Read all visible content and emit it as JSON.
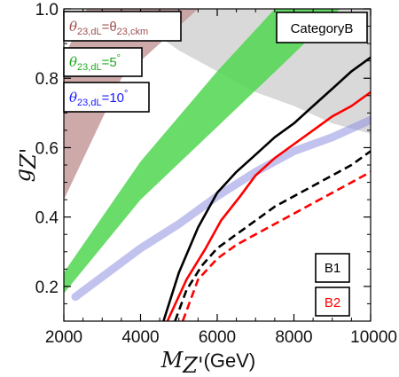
{
  "chart_data": {
    "type": "area",
    "title": "",
    "category_label": "CategoryB",
    "xlabel": {
      "symbol": "M",
      "sub": "Z'",
      "unit": "(GeV)"
    },
    "ylabel": {
      "symbol": "g",
      "sub": "Z'"
    },
    "xlim": [
      2000,
      10000
    ],
    "ylim": [
      0.1,
      1.0
    ],
    "x_ticks": [
      2000,
      4000,
      6000,
      8000,
      10000
    ],
    "x_tick_labels": [
      "2000",
      "4000",
      "6000",
      "8000",
      "10000"
    ],
    "y_ticks": [
      0.2,
      0.4,
      0.6,
      0.8,
      1.0
    ],
    "y_tick_labels": [
      "0.2",
      "0.4",
      "0.6",
      "0.8",
      "1.0"
    ],
    "grid": false,
    "colors": {
      "gray_region": "#d9d9d9",
      "band_ckm": "#c49a9a",
      "band_5deg": "#4fd64f",
      "band_10deg": "#8f8fe0",
      "B1": "#000000",
      "B2": "#ff0000",
      "text_ckm": "#a05050",
      "text_5deg": "#22aa22",
      "text_10deg": "#1a1aff"
    },
    "region_legend": [
      {
        "id": "ckm",
        "pre": "θ",
        "sub": "23,dL",
        "mid": "=θ",
        "sub2": "23,ckm",
        "post": ""
      },
      {
        "id": "5deg",
        "pre": "θ",
        "sub": "23,dL",
        "mid": "=5",
        "sub2": "",
        "post": "°"
      },
      {
        "id": "10deg",
        "pre": "θ",
        "sub": "23,dL",
        "mid": "=10",
        "sub2": "",
        "post": "°"
      }
    ],
    "series": [
      {
        "name": "B1",
        "style": "solid",
        "color": "#000000",
        "x": [
          4600,
          5000,
          5500,
          6000,
          6500,
          7000,
          7500,
          8000,
          8500,
          9000,
          9500,
          10000
        ],
        "y": [
          0.1,
          0.24,
          0.37,
          0.47,
          0.53,
          0.58,
          0.63,
          0.67,
          0.72,
          0.77,
          0.82,
          0.86
        ]
      },
      {
        "name": "B1",
        "style": "dashed",
        "color": "#000000",
        "x": [
          4900,
          5200,
          5600,
          6000,
          6500,
          7000,
          7500,
          8000,
          8500,
          9000,
          9500,
          10000
        ],
        "y": [
          0.1,
          0.19,
          0.26,
          0.31,
          0.35,
          0.39,
          0.43,
          0.46,
          0.49,
          0.52,
          0.55,
          0.59
        ]
      },
      {
        "name": "B2",
        "style": "solid",
        "color": "#ff0000",
        "x": [
          4700,
          5200,
          5700,
          6100,
          6600,
          7000,
          7500,
          8000,
          8500,
          9000,
          9500,
          10000
        ],
        "y": [
          0.1,
          0.22,
          0.31,
          0.39,
          0.46,
          0.52,
          0.57,
          0.61,
          0.65,
          0.69,
          0.72,
          0.76
        ]
      },
      {
        "name": "B2",
        "style": "dashed",
        "color": "#ff0000",
        "x": [
          5100,
          5500,
          6000,
          6500,
          7000,
          7500,
          8000,
          8500,
          9000,
          9500,
          10000
        ],
        "y": [
          0.1,
          0.22,
          0.28,
          0.32,
          0.35,
          0.38,
          0.41,
          0.44,
          0.47,
          0.5,
          0.53
        ]
      }
    ],
    "regions": {
      "gray_upper_boundary": {
        "x": [
          2000,
          2900,
          3600,
          4100,
          5000,
          6000,
          7000,
          8000,
          9000,
          10000
        ],
        "y": [
          1.0,
          1.0,
          0.97,
          0.95,
          0.88,
          0.82,
          0.76,
          0.72,
          0.67,
          0.64
        ]
      },
      "band_ckm": {
        "lower_x": [
          2000,
          3500,
          5500
        ],
        "lower_y": [
          0.45,
          0.8,
          1.0
        ],
        "upper_x": [
          2000,
          2600
        ],
        "upper_y": [
          0.86,
          1.0
        ]
      },
      "band_5deg": {
        "lower_x": [
          2000,
          4000,
          6000,
          7800,
          9200
        ],
        "lower_y": [
          0.18,
          0.45,
          0.66,
          0.85,
          1.0
        ],
        "upper_x": [
          2000,
          4000,
          6000,
          7500
        ],
        "upper_y": [
          0.24,
          0.56,
          0.82,
          1.0
        ]
      },
      "band_10deg": {
        "x": [
          2300,
          4000,
          5000,
          6000,
          7000,
          8000,
          9000,
          10000
        ],
        "y": [
          0.17,
          0.31,
          0.38,
          0.46,
          0.53,
          0.59,
          0.63,
          0.68
        ]
      }
    }
  }
}
